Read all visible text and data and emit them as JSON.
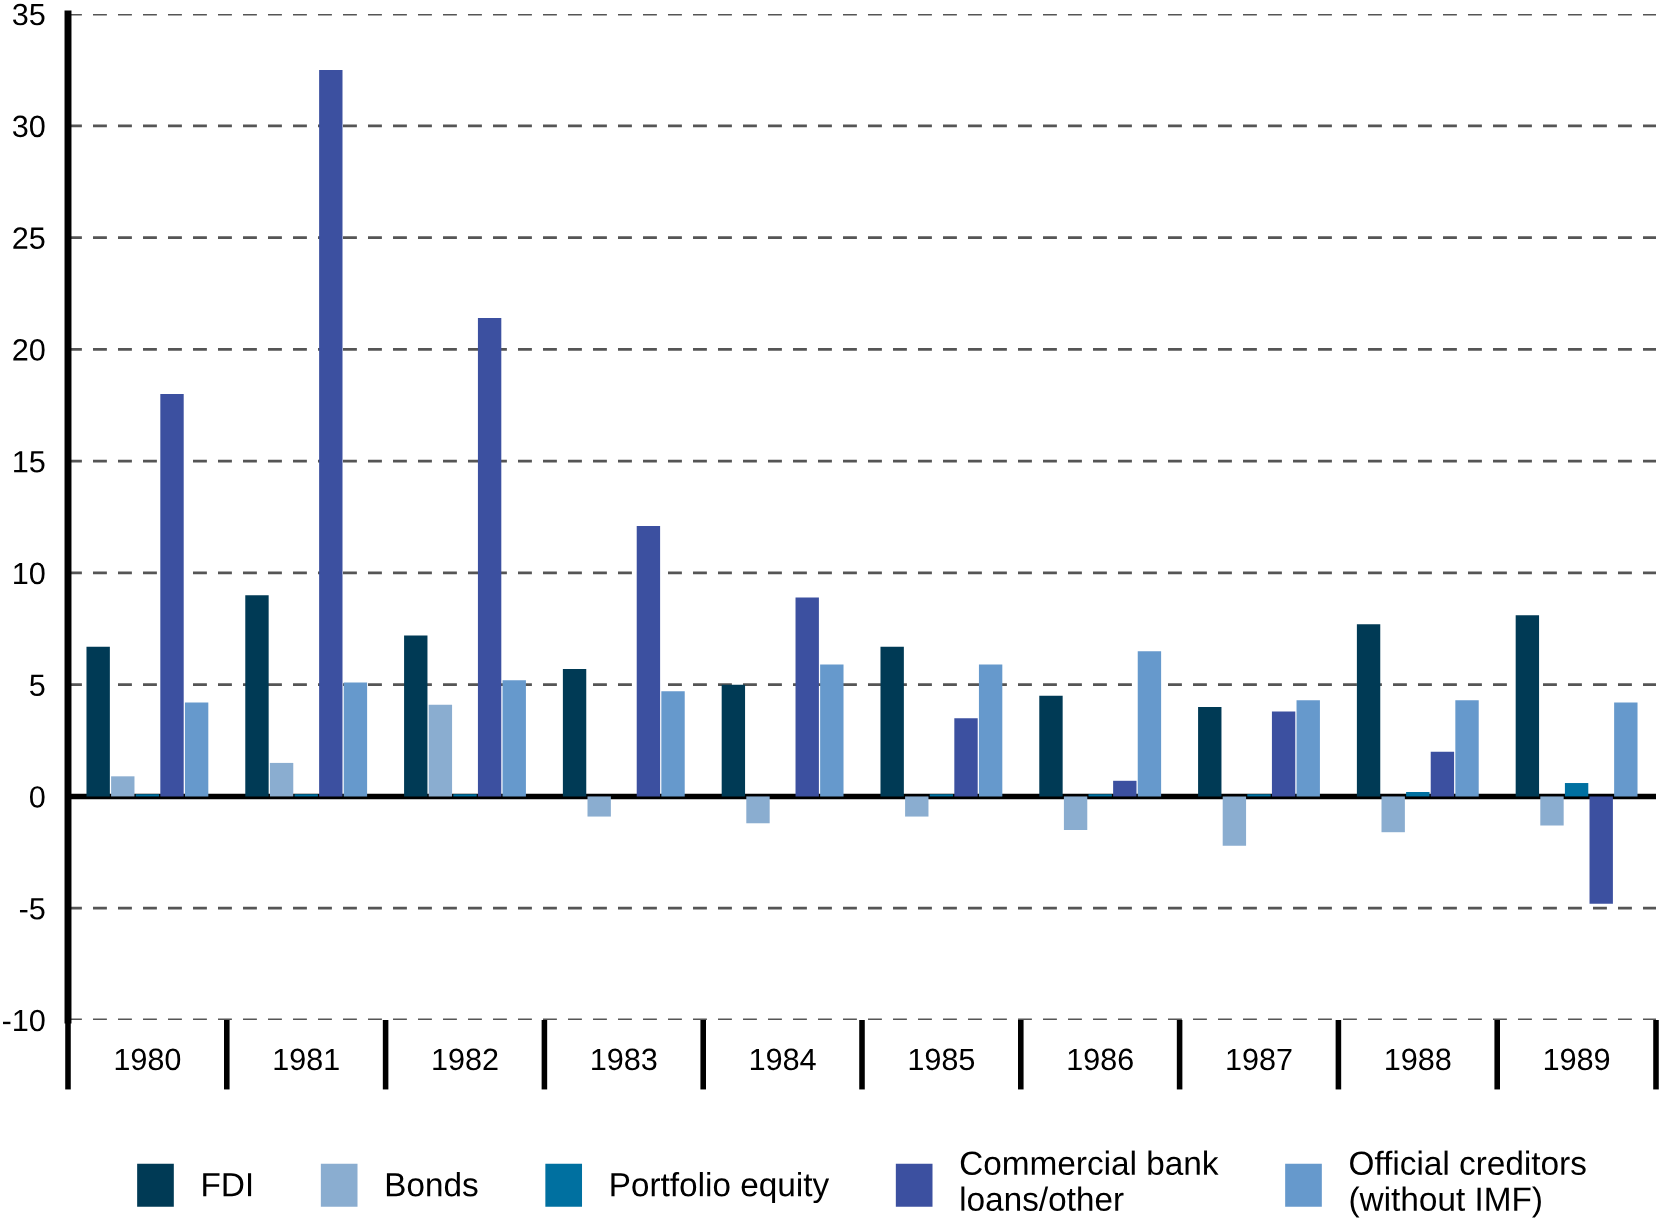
{
  "chart_data": {
    "type": "bar",
    "categories": [
      "1980",
      "1981",
      "1982",
      "1983",
      "1984",
      "1985",
      "1986",
      "1987",
      "1988",
      "1989"
    ],
    "series": [
      {
        "name": "FDI",
        "color": "#003a55",
        "values": [
          6.7,
          9.0,
          7.2,
          5.7,
          5.0,
          6.7,
          4.5,
          4.0,
          7.7,
          8.1
        ]
      },
      {
        "name": "Bonds",
        "color": "#8aadd0",
        "values": [
          0.9,
          1.5,
          4.1,
          -0.9,
          -1.2,
          -0.9,
          -1.5,
          -2.2,
          -1.6,
          -1.3
        ]
      },
      {
        "name": "Portfolio equity",
        "color": "#0070a0",
        "values": [
          0.1,
          0.1,
          0.1,
          0.0,
          0.0,
          0.1,
          0.1,
          0.1,
          0.2,
          0.6
        ]
      },
      {
        "name": "Commercial bank\nloans/other",
        "color": "#3c50a0",
        "values": [
          18.0,
          32.5,
          21.4,
          12.1,
          8.9,
          3.5,
          0.7,
          3.8,
          2.0,
          -4.8
        ]
      },
      {
        "name": "Official creditors\n(without IMF)",
        "color": "#6699cc",
        "values": [
          4.2,
          5.1,
          5.2,
          4.7,
          5.9,
          5.9,
          6.5,
          4.3,
          4.3,
          4.2
        ]
      }
    ],
    "ylim": [
      -10,
      35
    ],
    "yticks": [
      -10,
      -5,
      0,
      5,
      10,
      15,
      20,
      25,
      30,
      35
    ],
    "grid": "y",
    "legend": "bottom"
  }
}
